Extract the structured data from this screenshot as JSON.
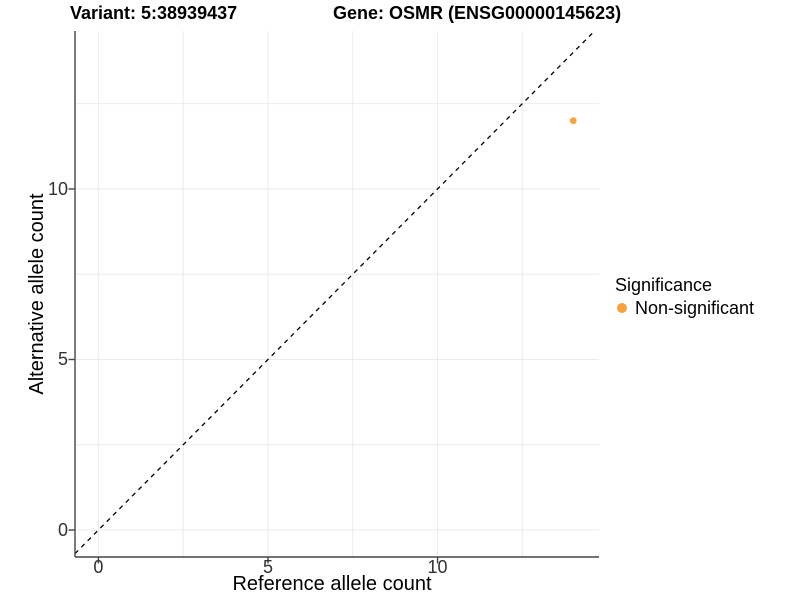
{
  "header": {
    "variant_title": "Variant: 5:38939437",
    "gene_title": "Gene: OSMR (ENSG00000145623)"
  },
  "chart_data": {
    "type": "scatter",
    "xlabel": "Reference allele count",
    "ylabel": "Alternative allele count",
    "x_ticks": [
      0,
      5,
      10
    ],
    "y_ticks": [
      0,
      5,
      10
    ],
    "grid_breaks": [
      0,
      2.5,
      5,
      7.5,
      10,
      12.5
    ],
    "xlim": [
      -0.69,
      14.76
    ],
    "ylim": [
      -0.79,
      14.63
    ],
    "grid": true,
    "identity_line": {
      "slope": 1,
      "intercept": 0,
      "style": "dashed",
      "color": "#000000"
    },
    "points": [
      {
        "x": 14,
        "y": 12,
        "significance": "Non-significant"
      }
    ],
    "legend": {
      "title": "Significance",
      "position": "right",
      "items": [
        {
          "label": "Non-significant",
          "color": "#FBA03B"
        }
      ]
    },
    "colors": {
      "point": "#FBA03B",
      "grid": "#EBEBEB",
      "axis": "#454545",
      "tick_label": "#333333",
      "dashed_line": "#000000"
    }
  }
}
